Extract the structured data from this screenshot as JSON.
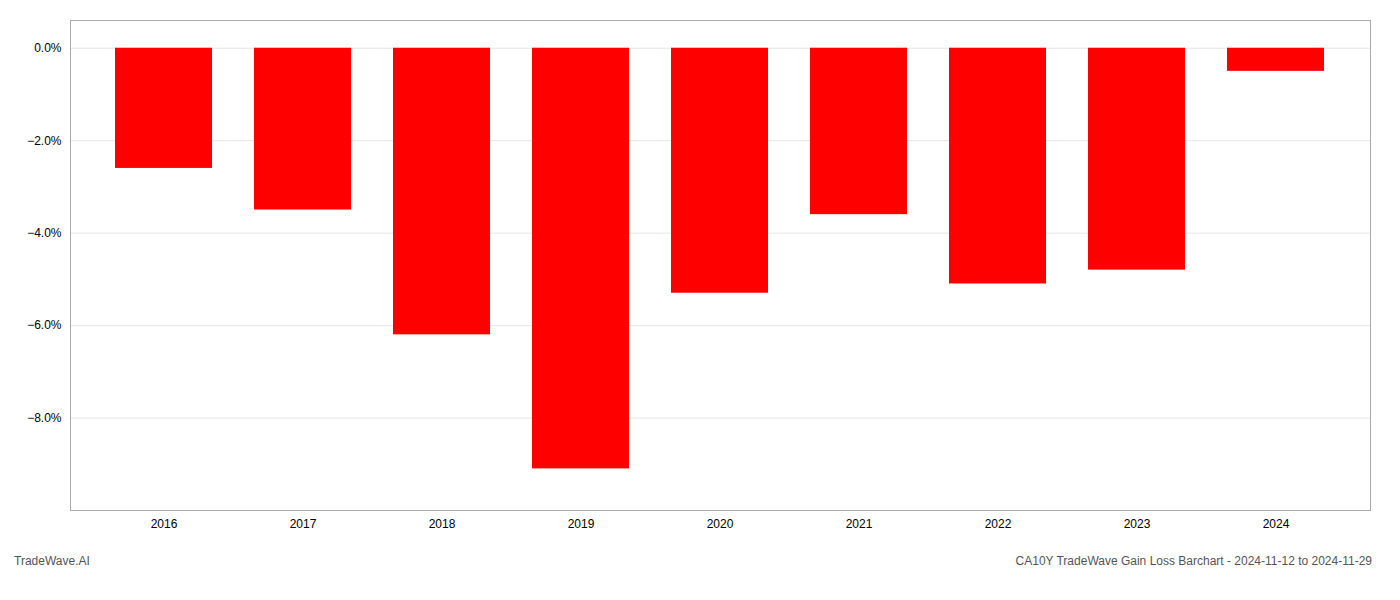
{
  "chart_data": {
    "type": "bar",
    "title": "CA10Y TradeWave Gain Loss Barchart - 2024-11-12 to 2024-11-29",
    "annotations": [
      "TradeWave.AI"
    ],
    "categories": [
      "2016",
      "2017",
      "2018",
      "2019",
      "2020",
      "2021",
      "2022",
      "2023",
      "2024"
    ],
    "values": [
      -2.6,
      -3.5,
      -6.2,
      -9.1,
      -5.3,
      -3.6,
      -5.1,
      -4.8,
      -0.5
    ],
    "color": "#ff0000",
    "ylim": [
      -10.0,
      0.6
    ],
    "yticks": [
      {
        "value": 0.0,
        "label": "0.0%"
      },
      {
        "value": -2.0,
        "label": "−2.0%"
      },
      {
        "value": -4.0,
        "label": "−4.0%"
      },
      {
        "value": -6.0,
        "label": "−6.0%"
      },
      {
        "value": -8.0,
        "label": "−8.0%"
      }
    ],
    "grid": true
  }
}
